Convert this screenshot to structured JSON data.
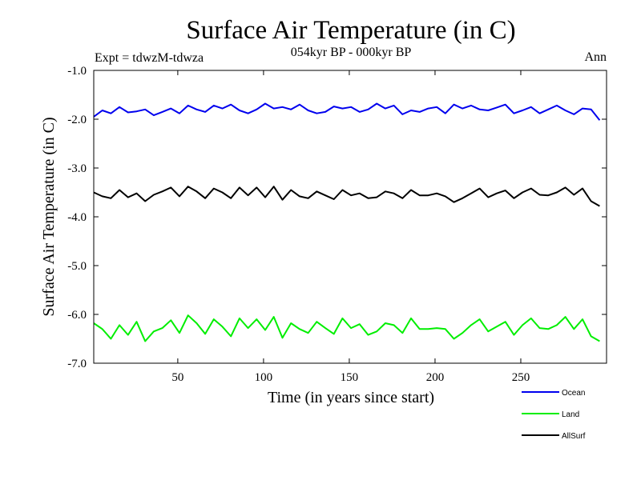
{
  "chart_data": {
    "type": "line",
    "title": "Surface Air Temperature (in C)",
    "subtitle": "054kyr BP - 000kyr BP",
    "experiment_label": "Expt = tdwzM-tdwza",
    "period_label": "Ann",
    "xlabel": "Time (in years since start)",
    "ylabel": "Surface Air Temperature (in C)",
    "xlim": [
      1,
      300
    ],
    "ylim": [
      -7.0,
      -1.0
    ],
    "x_ticks": [
      50,
      100,
      150,
      200,
      250
    ],
    "x_tick_labels": [
      "50",
      "100",
      "150",
      "200",
      "250"
    ],
    "y_ticks": [
      -1.0,
      -2.0,
      -3.0,
      -4.0,
      -5.0,
      -6.0,
      -7.0
    ],
    "y_tick_labels": [
      "-1.0",
      "-2.0",
      "-3.0",
      "-4.0",
      "-5.0",
      "-6.0",
      "-7.0"
    ],
    "grid": false,
    "legend_position": "bottom-right, below plot",
    "x_start": 1,
    "x_step": 5,
    "series": [
      {
        "name": "Ocean",
        "color": "#0000ee",
        "values": [
          -1.95,
          -1.82,
          -1.88,
          -1.75,
          -1.86,
          -1.84,
          -1.8,
          -1.92,
          -1.85,
          -1.78,
          -1.88,
          -1.72,
          -1.8,
          -1.85,
          -1.72,
          -1.78,
          -1.7,
          -1.82,
          -1.88,
          -1.8,
          -1.68,
          -1.78,
          -1.75,
          -1.8,
          -1.7,
          -1.82,
          -1.88,
          -1.85,
          -1.74,
          -1.78,
          -1.75,
          -1.85,
          -1.8,
          -1.68,
          -1.78,
          -1.72,
          -1.9,
          -1.82,
          -1.85,
          -1.78,
          -1.75,
          -1.88,
          -1.7,
          -1.78,
          -1.72,
          -1.8,
          -1.82,
          -1.76,
          -1.7,
          -1.88,
          -1.82,
          -1.75,
          -1.88,
          -1.8,
          -1.72,
          -1.82,
          -1.9,
          -1.78,
          -1.8,
          -2.02
        ]
      },
      {
        "name": "Land",
        "color": "#00ee00",
        "values": [
          -6.18,
          -6.3,
          -6.5,
          -6.22,
          -6.42,
          -6.15,
          -6.55,
          -6.35,
          -6.28,
          -6.12,
          -6.38,
          -6.02,
          -6.18,
          -6.4,
          -6.1,
          -6.25,
          -6.45,
          -6.08,
          -6.28,
          -6.1,
          -6.32,
          -6.05,
          -6.48,
          -6.18,
          -6.3,
          -6.38,
          -6.15,
          -6.28,
          -6.4,
          -6.08,
          -6.28,
          -6.2,
          -6.42,
          -6.35,
          -6.18,
          -6.22,
          -6.38,
          -6.08,
          -6.3,
          -6.3,
          -6.28,
          -6.3,
          -6.5,
          -6.38,
          -6.22,
          -6.1,
          -6.35,
          -6.25,
          -6.15,
          -6.42,
          -6.22,
          -6.08,
          -6.28,
          -6.3,
          -6.22,
          -6.05,
          -6.3,
          -6.1,
          -6.45,
          -6.55
        ]
      },
      {
        "name": "AllSurf",
        "color": "#000000",
        "values": [
          -3.5,
          -3.58,
          -3.62,
          -3.45,
          -3.6,
          -3.52,
          -3.68,
          -3.55,
          -3.48,
          -3.4,
          -3.58,
          -3.38,
          -3.48,
          -3.62,
          -3.42,
          -3.5,
          -3.62,
          -3.4,
          -3.56,
          -3.4,
          -3.6,
          -3.38,
          -3.65,
          -3.45,
          -3.58,
          -3.62,
          -3.48,
          -3.56,
          -3.64,
          -3.45,
          -3.56,
          -3.52,
          -3.62,
          -3.6,
          -3.48,
          -3.52,
          -3.62,
          -3.45,
          -3.56,
          -3.56,
          -3.52,
          -3.58,
          -3.7,
          -3.62,
          -3.52,
          -3.42,
          -3.6,
          -3.52,
          -3.46,
          -3.62,
          -3.5,
          -3.42,
          -3.55,
          -3.56,
          -3.5,
          -3.4,
          -3.55,
          -3.42,
          -3.68,
          -3.78
        ]
      }
    ]
  }
}
